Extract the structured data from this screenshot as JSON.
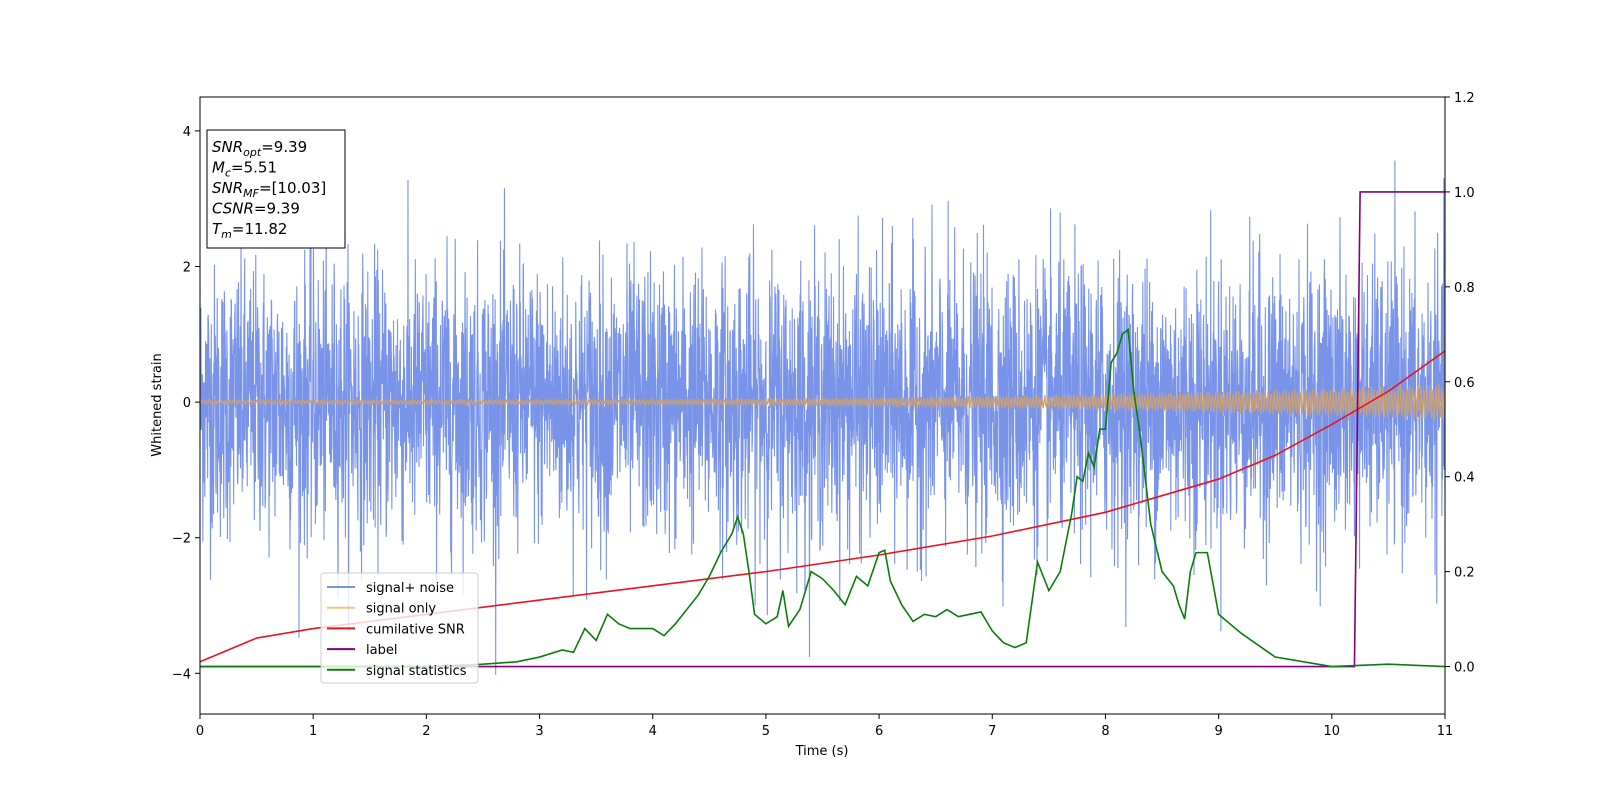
{
  "chart_data": {
    "type": "line",
    "title": "",
    "xlabel": "Time (s)",
    "ylabel": "Whitened strain",
    "y2label": "",
    "xlim": [
      0,
      11
    ],
    "ylim": [
      -4.6,
      4.5
    ],
    "y2lim": [
      -0.1,
      1.2
    ],
    "xticks": [
      0,
      1,
      2,
      3,
      4,
      5,
      6,
      7,
      8,
      9,
      10,
      11
    ],
    "yticks": [
      -4,
      -2,
      0,
      2,
      4
    ],
    "y2ticks": [
      "0.0",
      "0.2",
      "0.4",
      "0.6",
      "0.8",
      "1.0",
      "1.2"
    ],
    "grid": false,
    "legend_position": "lower-left",
    "annotation": [
      {
        "base": "SNR",
        "sub": "opt",
        "value": "=9.39"
      },
      {
        "base": "M",
        "sub": "c",
        "value": "=5.51"
      },
      {
        "base": "SNR",
        "sub": "MF",
        "value": "=[10.03]"
      },
      {
        "base": "CSNR",
        "sub": "",
        "value": "=9.39"
      },
      {
        "base": "T",
        "sub": "m",
        "value": "=11.82"
      }
    ],
    "series": [
      {
        "name": "signal+ noise",
        "axis": "left",
        "color": "#7893e8",
        "style": "noise",
        "sigma": 1.0,
        "typical_range": [
          -2.8,
          2.9
        ],
        "extremes": [
          4.1,
          -4.1
        ]
      },
      {
        "name": "signal only",
        "axis": "left",
        "color": "#f5c27a",
        "style": "chirp",
        "amplitude_start": 0.03,
        "amplitude_end": 0.27
      },
      {
        "name": "cumilative SNR",
        "axis": "right",
        "color": "#e8141c",
        "x": [
          0,
          0.5,
          1,
          2,
          3,
          4,
          5,
          6,
          7,
          8,
          9,
          9.5,
          10,
          10.5,
          11
        ],
        "y": [
          0.01,
          0.06,
          0.08,
          0.11,
          0.14,
          0.17,
          0.2,
          0.235,
          0.275,
          0.325,
          0.395,
          0.445,
          0.51,
          0.58,
          0.665
        ]
      },
      {
        "name": "label",
        "axis": "right",
        "color": "#800080",
        "x": [
          0,
          10.2,
          10.25,
          11
        ],
        "y": [
          0,
          0,
          1,
          1
        ]
      },
      {
        "name": "signal statistics",
        "axis": "right",
        "color": "#0a7d0a",
        "x": [
          0,
          0.5,
          1,
          1.5,
          2,
          2.5,
          2.8,
          3,
          3.2,
          3.3,
          3.4,
          3.5,
          3.6,
          3.7,
          3.8,
          4,
          4.1,
          4.2,
          4.3,
          4.4,
          4.5,
          4.6,
          4.7,
          4.75,
          4.8,
          4.85,
          4.9,
          5,
          5.1,
          5.15,
          5.2,
          5.3,
          5.4,
          5.5,
          5.6,
          5.7,
          5.8,
          5.9,
          6,
          6.05,
          6.1,
          6.2,
          6.3,
          6.4,
          6.5,
          6.6,
          6.7,
          6.8,
          6.9,
          7,
          7.1,
          7.2,
          7.3,
          7.4,
          7.5,
          7.6,
          7.7,
          7.75,
          7.8,
          7.85,
          7.9,
          7.95,
          8,
          8.05,
          8.1,
          8.15,
          8.2,
          8.25,
          8.3,
          8.4,
          8.5,
          8.6,
          8.65,
          8.7,
          8.75,
          8.8,
          8.9,
          9,
          9.2,
          9.5,
          10,
          10.5,
          11
        ],
        "y": [
          0.0,
          0.0,
          0.0,
          0.0,
          0.0,
          0.005,
          0.01,
          0.02,
          0.035,
          0.03,
          0.08,
          0.055,
          0.11,
          0.09,
          0.08,
          0.08,
          0.065,
          0.09,
          0.12,
          0.15,
          0.19,
          0.24,
          0.28,
          0.315,
          0.28,
          0.2,
          0.11,
          0.09,
          0.105,
          0.16,
          0.085,
          0.12,
          0.2,
          0.185,
          0.16,
          0.13,
          0.19,
          0.17,
          0.24,
          0.245,
          0.18,
          0.13,
          0.095,
          0.11,
          0.105,
          0.12,
          0.105,
          0.11,
          0.115,
          0.075,
          0.05,
          0.04,
          0.05,
          0.22,
          0.16,
          0.2,
          0.32,
          0.4,
          0.39,
          0.45,
          0.42,
          0.5,
          0.5,
          0.64,
          0.66,
          0.7,
          0.71,
          0.58,
          0.5,
          0.3,
          0.2,
          0.17,
          0.13,
          0.1,
          0.2,
          0.24,
          0.24,
          0.11,
          0.07,
          0.02,
          0.0,
          0.005,
          0.0
        ]
      }
    ]
  }
}
